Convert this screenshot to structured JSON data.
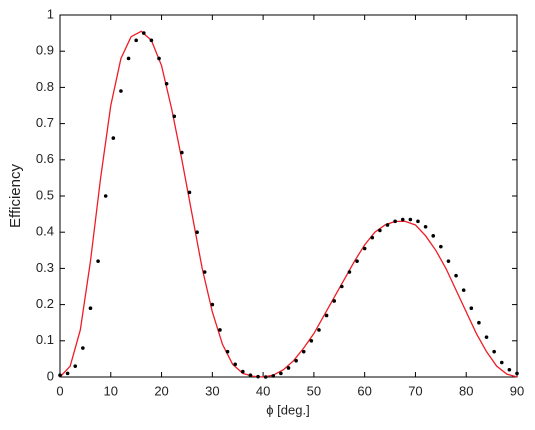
{
  "chart_data": {
    "type": "line",
    "xlabel": "ϕ [deg.]",
    "ylabel": "Efficiency",
    "xlim": [
      0,
      90
    ],
    "xticks": [
      0,
      10,
      20,
      30,
      40,
      50,
      60,
      70,
      80,
      90
    ],
    "ylim": [
      0,
      1
    ],
    "yticks": [
      0,
      0.1,
      0.2,
      0.3,
      0.4,
      0.5,
      0.6,
      0.7,
      0.8,
      0.9,
      1
    ],
    "grid": false,
    "series": [
      {
        "style": "line",
        "color": "#ee1c25",
        "x": [
          0,
          2,
          4,
          6,
          8,
          10,
          12,
          14,
          16,
          18,
          20,
          22,
          24,
          26,
          28,
          30,
          32,
          34,
          36,
          38,
          40,
          42,
          44,
          46,
          48,
          50,
          52,
          54,
          56,
          58,
          60,
          62,
          64,
          66,
          68,
          70,
          72,
          74,
          76,
          78,
          80,
          82,
          84,
          86,
          88,
          90
        ],
        "values": [
          0,
          0.03,
          0.13,
          0.32,
          0.55,
          0.75,
          0.88,
          0.94,
          0.955,
          0.93,
          0.86,
          0.74,
          0.6,
          0.45,
          0.3,
          0.18,
          0.09,
          0.035,
          0.01,
          0.002,
          0,
          0.005,
          0.02,
          0.045,
          0.08,
          0.12,
          0.17,
          0.22,
          0.27,
          0.32,
          0.365,
          0.4,
          0.42,
          0.43,
          0.43,
          0.42,
          0.39,
          0.35,
          0.3,
          0.24,
          0.18,
          0.12,
          0.07,
          0.03,
          0.008,
          0
        ]
      },
      {
        "style": "dots",
        "color": "#000000",
        "x": [
          0,
          1.5,
          3,
          4.5,
          6,
          7.5,
          9,
          10.5,
          12,
          13.5,
          15,
          16.5,
          18,
          19.5,
          21,
          22.5,
          24,
          25.5,
          27,
          28.5,
          30,
          31.5,
          33,
          34.5,
          36,
          37.5,
          39,
          40.5,
          42,
          43.5,
          45,
          46.5,
          48,
          49.5,
          51,
          52.5,
          54,
          55.5,
          57,
          58.5,
          60,
          61.5,
          63,
          64.5,
          66,
          67.5,
          69,
          70.5,
          72,
          73.5,
          75,
          76.5,
          78,
          79.5,
          81,
          82.5,
          84,
          85.5,
          87,
          88.5,
          90
        ],
        "values": [
          0.005,
          0.01,
          0.03,
          0.08,
          0.19,
          0.32,
          0.5,
          0.66,
          0.79,
          0.88,
          0.93,
          0.95,
          0.93,
          0.88,
          0.81,
          0.72,
          0.62,
          0.51,
          0.4,
          0.29,
          0.2,
          0.13,
          0.07,
          0.035,
          0.015,
          0.005,
          0.001,
          0,
          0.003,
          0.01,
          0.025,
          0.045,
          0.07,
          0.1,
          0.13,
          0.17,
          0.21,
          0.25,
          0.29,
          0.32,
          0.355,
          0.385,
          0.405,
          0.42,
          0.43,
          0.435,
          0.435,
          0.43,
          0.415,
          0.39,
          0.36,
          0.32,
          0.28,
          0.24,
          0.19,
          0.15,
          0.11,
          0.07,
          0.04,
          0.02,
          0.01
        ]
      }
    ]
  }
}
